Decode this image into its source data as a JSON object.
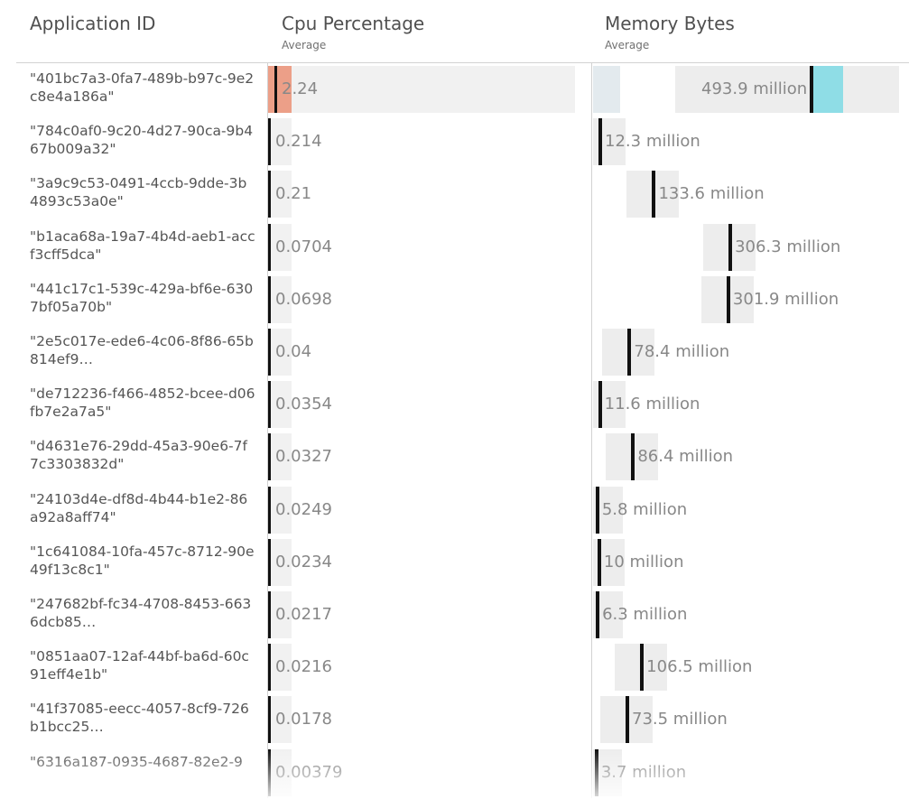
{
  "columns": {
    "app_id": "Application ID",
    "cpu": "Cpu Percentage",
    "cpu_sub": "Average",
    "mem": "Memory Bytes",
    "mem_sub": "Average"
  },
  "rows": [
    {
      "id": "\"401bc7a3-0fa7-489b-b97c-9e2c8e4a186a\"",
      "cpu": "2.24",
      "mem": "493.9 million",
      "mem_value": 493.9
    },
    {
      "id": "\"784c0af0-9c20-4d27-90ca-9b467b009a32\"",
      "cpu": "0.214",
      "mem": "12.3 million",
      "mem_value": 12.3
    },
    {
      "id": "\"3a9c9c53-0491-4ccb-9dde-3b4893c53a0e\"",
      "cpu": "0.21",
      "mem": "133.6 million",
      "mem_value": 133.6
    },
    {
      "id": "\"b1aca68a-19a7-4b4d-aeb1-accf3cff5dca\"",
      "cpu": "0.0704",
      "mem": "306.3 million",
      "mem_value": 306.3
    },
    {
      "id": "\"441c17c1-539c-429a-bf6e-6307bf05a70b\"",
      "cpu": "0.0698",
      "mem": "301.9 million",
      "mem_value": 301.9
    },
    {
      "id": "\"2e5c017e-ede6-4c06-8f86-65b814ef9…",
      "cpu": "0.04",
      "mem": "78.4 million",
      "mem_value": 78.4
    },
    {
      "id": "\"de712236-f466-4852-bcee-d06fb7e2a7a5\"",
      "cpu": "0.0354",
      "mem": "11.6 million",
      "mem_value": 11.6
    },
    {
      "id": "\"d4631e76-29dd-45a3-90e6-7f7c3303832d\"",
      "cpu": "0.0327",
      "mem": "86.4 million",
      "mem_value": 86.4
    },
    {
      "id": "\"24103d4e-df8d-4b44-b1e2-86a92a8aff74\"",
      "cpu": "0.0249",
      "mem": "5.8 million",
      "mem_value": 5.8
    },
    {
      "id": "\"1c641084-10fa-457c-8712-90e49f13c8c1\"",
      "cpu": "0.0234",
      "mem": "10 million",
      "mem_value": 10
    },
    {
      "id": "\"247682bf-fc34-4708-8453-6636dcb85…",
      "cpu": "0.0217",
      "mem": "6.3 million",
      "mem_value": 6.3
    },
    {
      "id": "\"0851aa07-12af-44bf-ba6d-60c91eff4e1b\"",
      "cpu": "0.0216",
      "mem": "106.5 million",
      "mem_value": 106.5
    },
    {
      "id": "\"41f37085-eecc-4057-8cf9-726b1bcc25…",
      "cpu": "0.0178",
      "mem": "73.5 million",
      "mem_value": 73.5
    },
    {
      "id": "\"6316a187-0935-4687-82e2-9",
      "cpu": "0.00379",
      "mem": "3.7 million",
      "mem_value": 3.7
    }
  ],
  "colors": {
    "cpu_fill": "#ec9f88",
    "mem_fill": "#8fdde6",
    "track": "#ededed",
    "marker": "#111111"
  }
}
